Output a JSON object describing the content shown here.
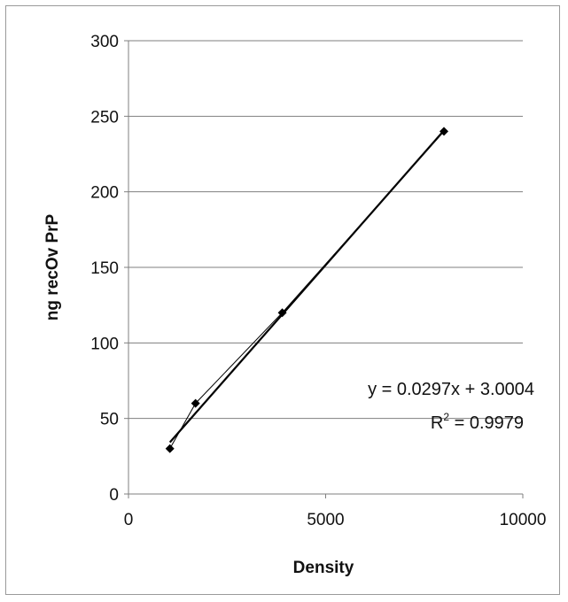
{
  "chart_data": {
    "type": "scatter",
    "title": "",
    "xlabel": "Density",
    "ylabel": "ng recOv PrP",
    "xlim": [
      0,
      10000
    ],
    "ylim": [
      0,
      300
    ],
    "xticks": [
      0,
      5000,
      10000
    ],
    "yticks": [
      0,
      50,
      100,
      150,
      200,
      250,
      300
    ],
    "grid": "horizontal",
    "legend": "none",
    "series": [
      {
        "x": [
          1050,
          1700,
          3900,
          8000
        ],
        "y": [
          30,
          60,
          120,
          240
        ],
        "marker": "diamond",
        "connected": true
      }
    ],
    "trendline": {
      "type": "linear",
      "slope": 0.0297,
      "intercept": 3.0004,
      "equation_text": "y = 0.0297x + 3.0004",
      "r2_prefix": "R",
      "r2_exp": "2",
      "r2_suffix": " = 0.9979"
    },
    "colors": {
      "line": "#000000",
      "grid": "#7f7f7f",
      "marker": "#000000"
    }
  }
}
